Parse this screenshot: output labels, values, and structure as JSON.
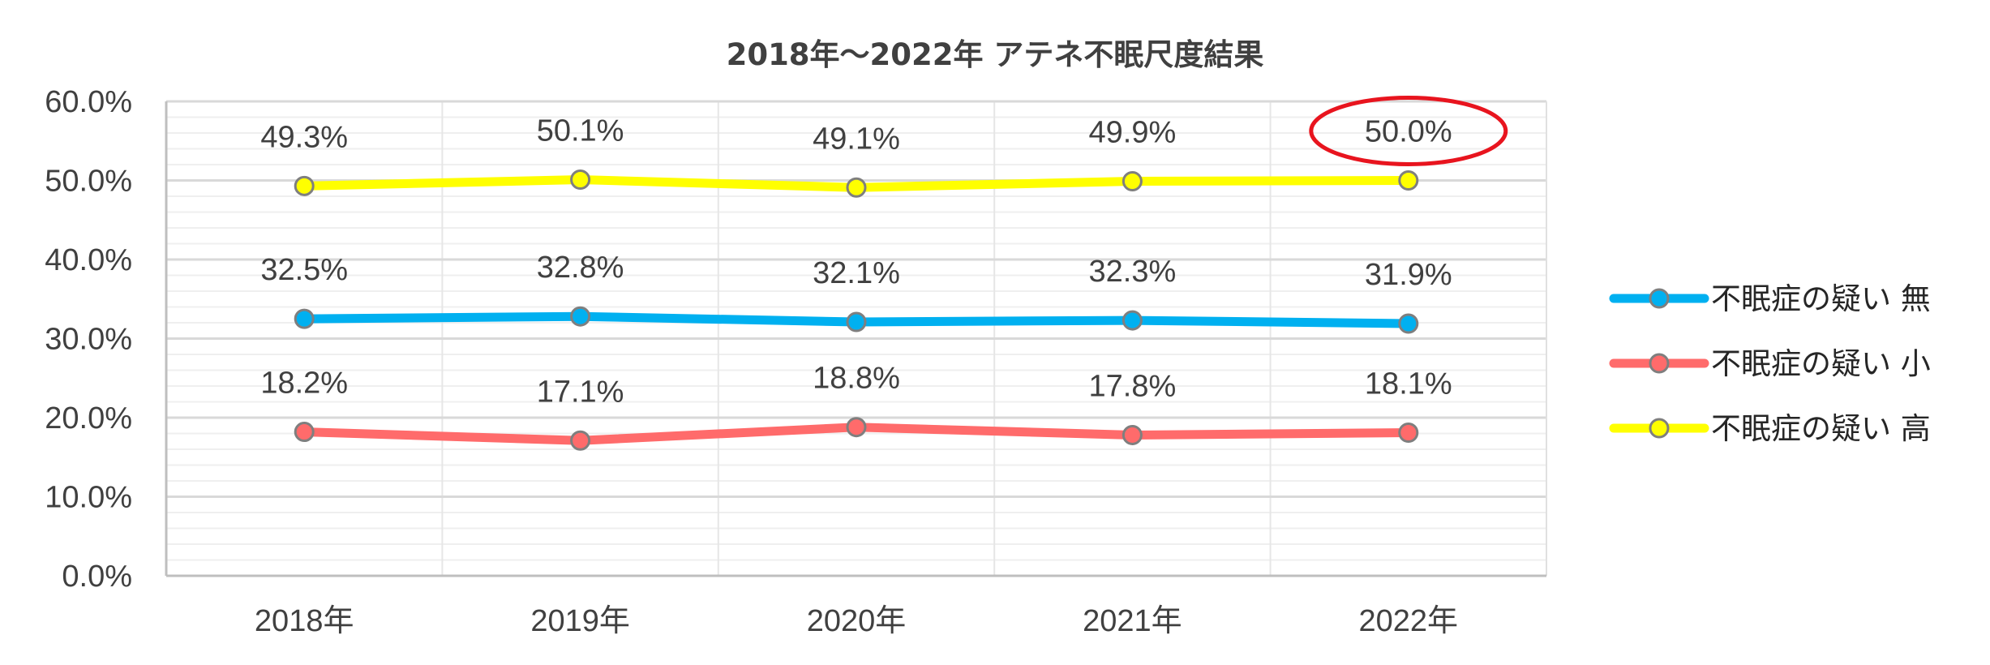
{
  "chart_data": {
    "type": "line",
    "title": "2018年～2022年 アテネ不眠尺度結果",
    "categories": [
      "2018年",
      "2019年",
      "2020年",
      "2021年",
      "2022年"
    ],
    "y_ticks": [
      "0.0%",
      "10.0%",
      "20.0%",
      "30.0%",
      "40.0%",
      "50.0%",
      "60.0%"
    ],
    "ylim": [
      0,
      60
    ],
    "y_unit": "%",
    "grid": true,
    "legend_position": "right",
    "series": [
      {
        "name": "不眠症の疑い 無",
        "color": "#00B0F0",
        "values": [
          32.5,
          32.8,
          32.1,
          32.3,
          31.9
        ],
        "labels": [
          "32.5%",
          "32.8%",
          "32.1%",
          "32.3%",
          "31.9%"
        ]
      },
      {
        "name": "不眠症の疑い 小",
        "color": "#FF6B6B",
        "values": [
          18.2,
          17.1,
          18.8,
          17.8,
          18.1
        ],
        "labels": [
          "18.2%",
          "17.1%",
          "18.8%",
          "17.8%",
          "18.1%"
        ]
      },
      {
        "name": "不眠症の疑い 高",
        "color": "#FFFF00",
        "values": [
          49.3,
          50.1,
          49.1,
          49.9,
          50.0
        ],
        "labels": [
          "49.3%",
          "50.1%",
          "49.1%",
          "49.9%",
          "50.0%"
        ]
      }
    ],
    "highlight": {
      "series_index": 2,
      "point_index": 4,
      "color": "#E8141E"
    }
  }
}
